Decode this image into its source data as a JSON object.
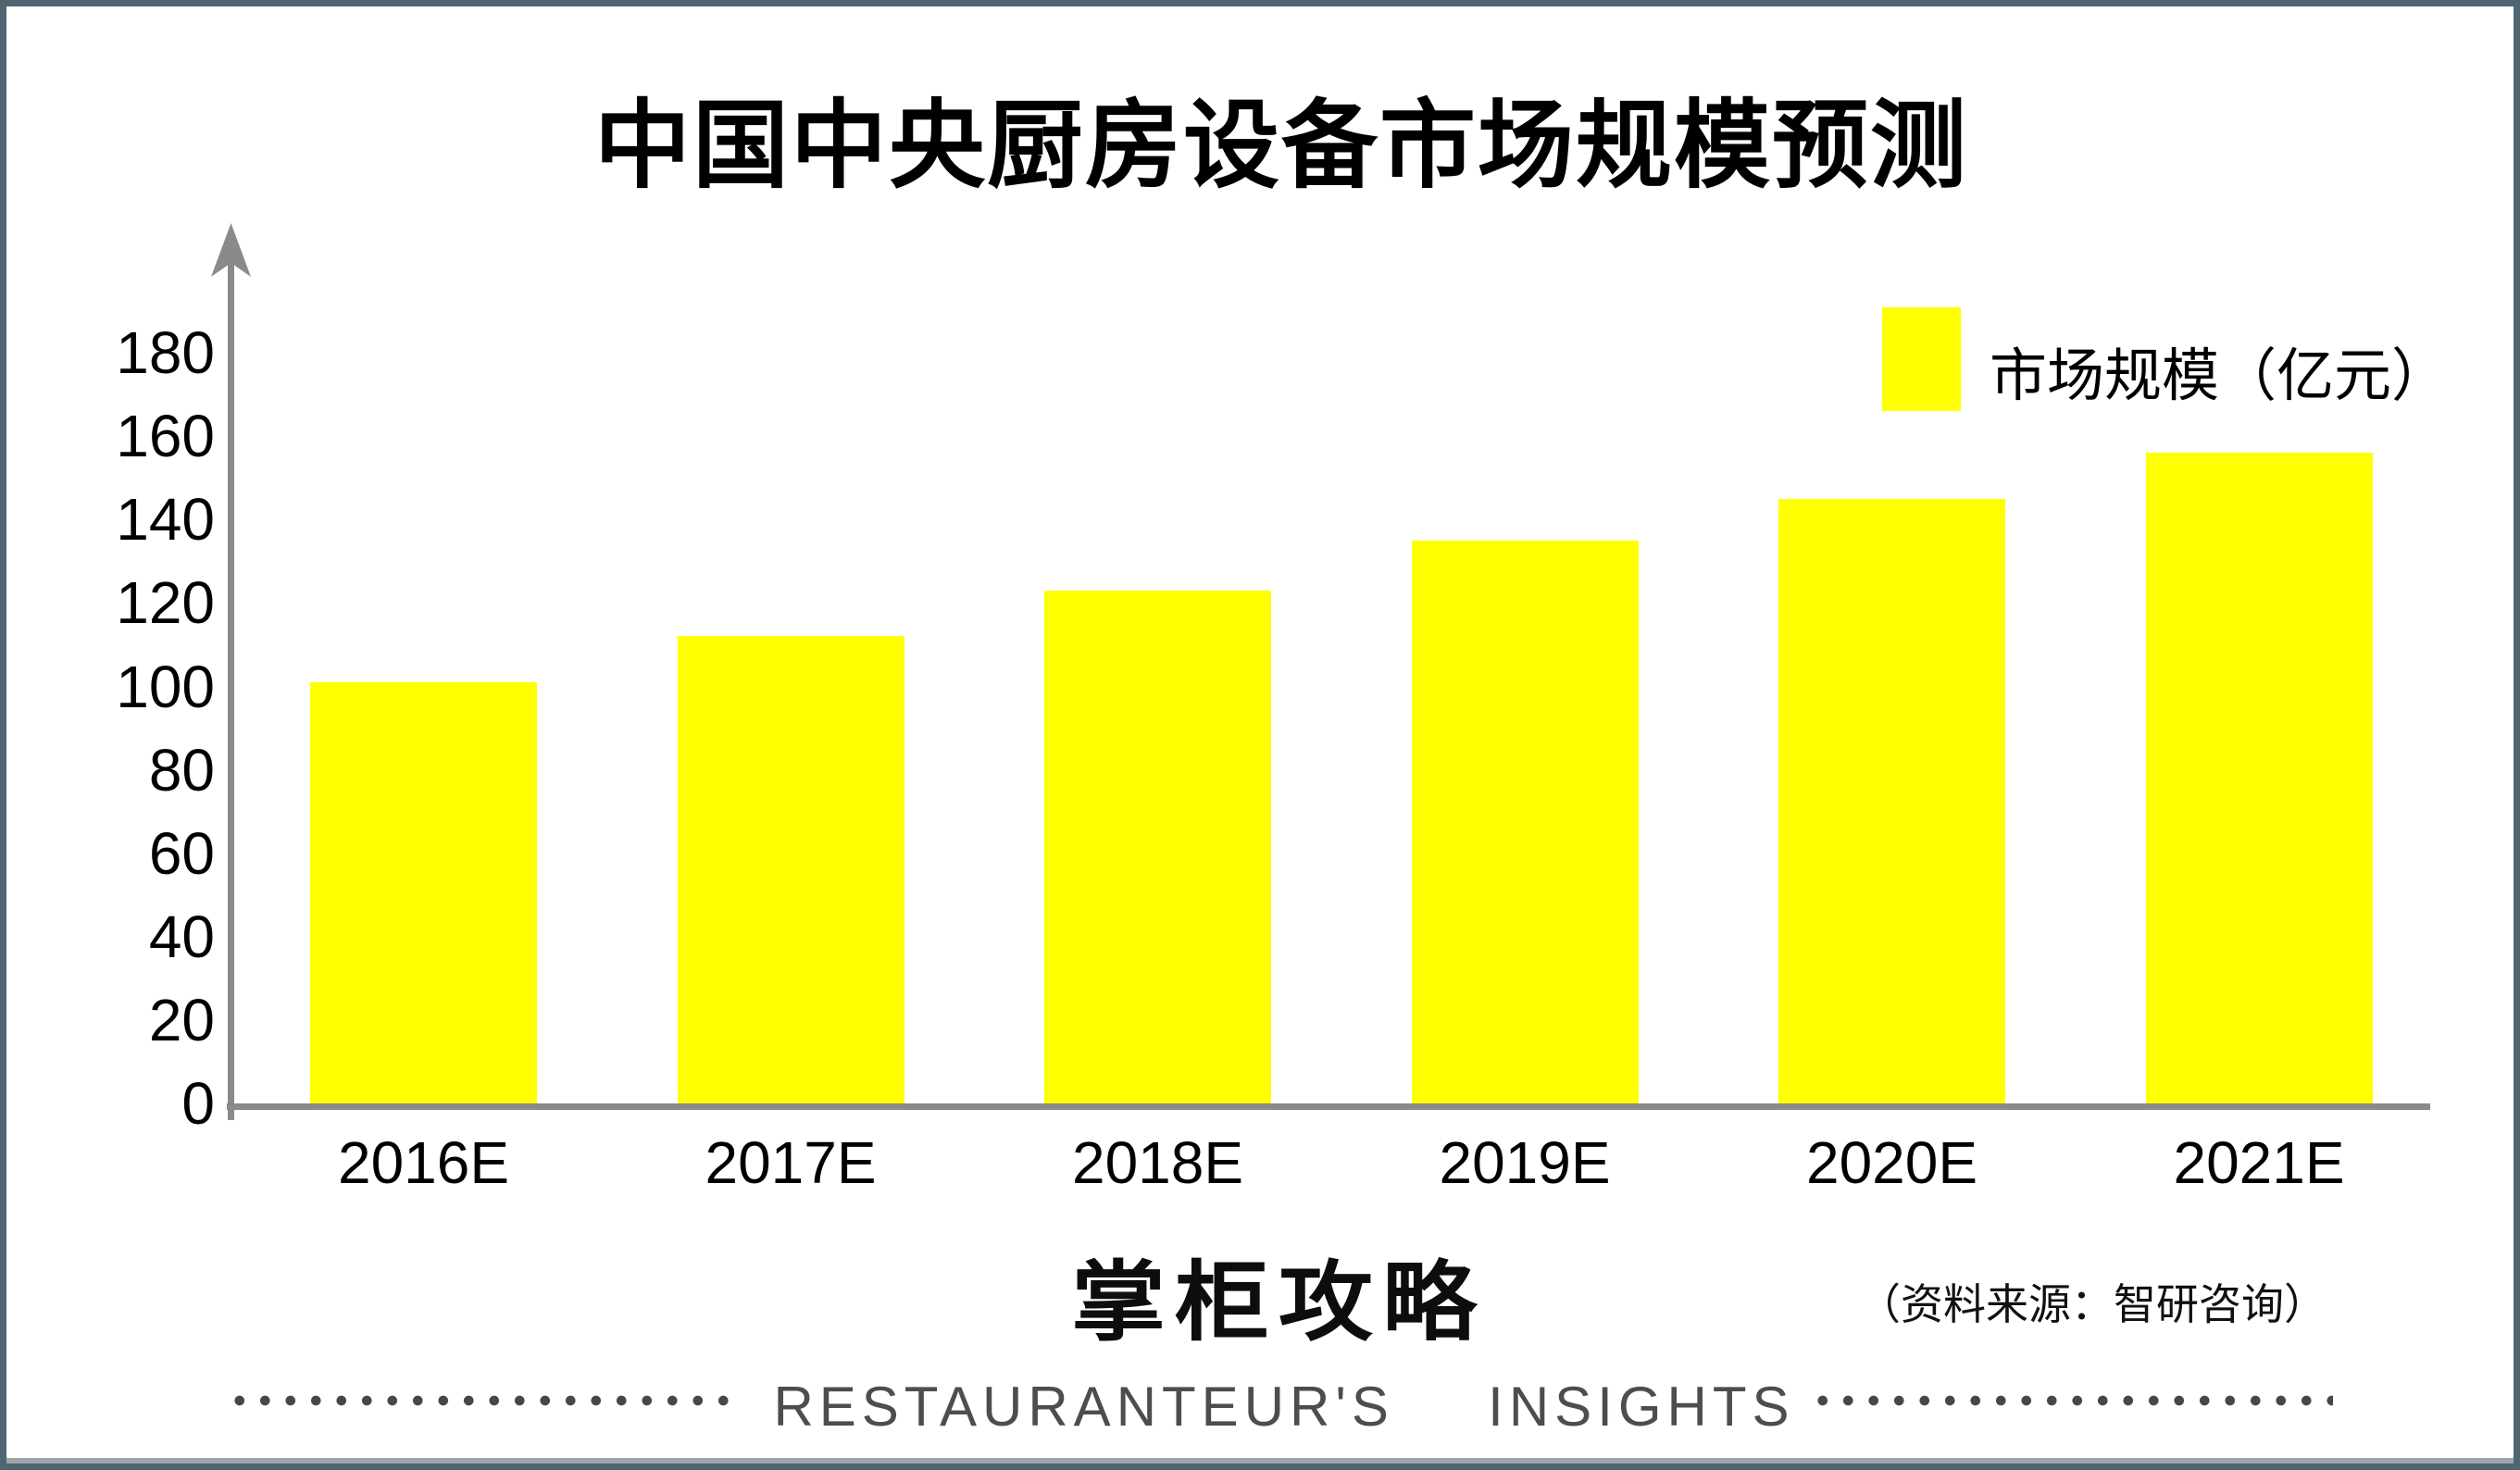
{
  "chart_data": {
    "type": "bar",
    "title": "中国中央厨房设备市场规模预测",
    "legend": "市场规模（亿元）",
    "categories": [
      "2016E",
      "2017E",
      "2018E",
      "2019E",
      "2020E",
      "2021E"
    ],
    "values": [
      101,
      112,
      123,
      135,
      145,
      156
    ],
    "yticks": [
      0,
      20,
      40,
      60,
      80,
      100,
      120,
      140,
      160,
      180
    ],
    "ylim": [
      0,
      190
    ],
    "xlabel": "",
    "ylabel": "",
    "grid": "off",
    "legend_position": "top-right",
    "bar_color": "#ffff00",
    "axis_color": "#8a8a8a"
  },
  "footer": {
    "logo": "掌柜攻略",
    "source": "（资料来源：智研咨询）",
    "tagline": "RESTAURANTEUR'S  INSIGHTS"
  }
}
